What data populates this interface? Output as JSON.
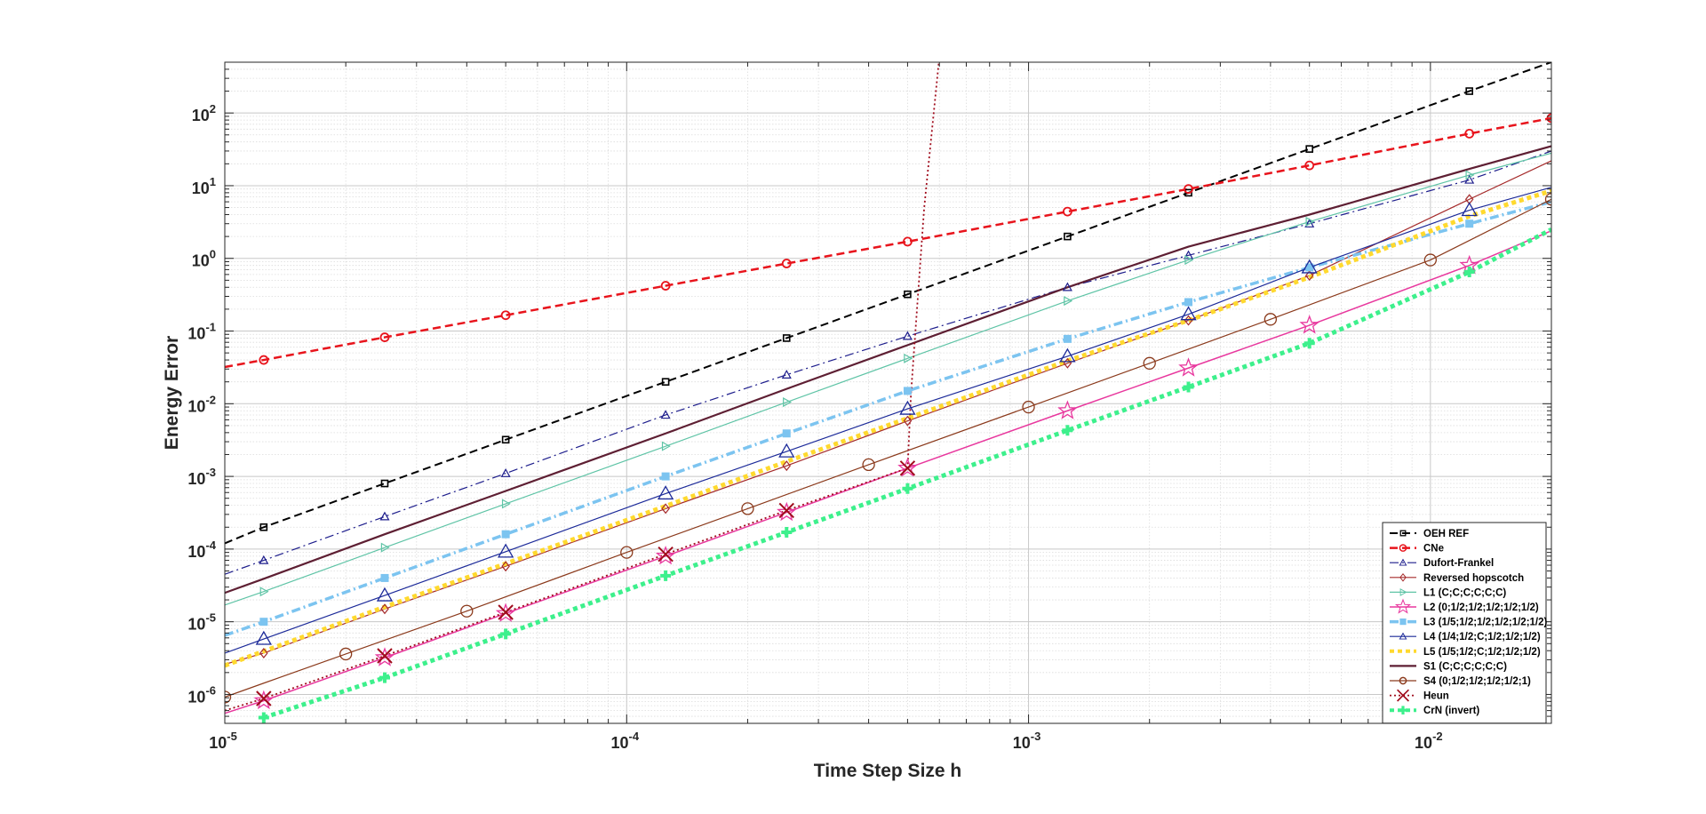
{
  "chart_data": {
    "type": "line",
    "xlabel": "Time Step Size h",
    "ylabel": "Energy Error",
    "xscale": "log",
    "yscale": "log",
    "xlim": [
      1e-05,
      0.02
    ],
    "ylim": [
      4e-07,
      500
    ],
    "grid": "on (major and minor)",
    "legend_position": "bottom-right",
    "x_ticks": [
      {
        "value": 1e-05,
        "base": "10",
        "exp": "-5"
      },
      {
        "value": 0.0001,
        "base": "10",
        "exp": "-4"
      },
      {
        "value": 0.001,
        "base": "10",
        "exp": "-3"
      },
      {
        "value": 0.01,
        "base": "10",
        "exp": "-2"
      }
    ],
    "y_ticks": [
      {
        "value": 1e-06,
        "base": "10",
        "exp": "-6"
      },
      {
        "value": 1e-05,
        "base": "10",
        "exp": "-5"
      },
      {
        "value": 0.0001,
        "base": "10",
        "exp": "-4"
      },
      {
        "value": 0.001,
        "base": "10",
        "exp": "-3"
      },
      {
        "value": 0.01,
        "base": "10",
        "exp": "-2"
      },
      {
        "value": 0.1,
        "base": "10",
        "exp": "-1"
      },
      {
        "value": 1,
        "base": "10",
        "exp": "0"
      },
      {
        "value": 10,
        "base": "10",
        "exp": "1"
      },
      {
        "value": 100,
        "base": "10",
        "exp": "2"
      }
    ],
    "series": [
      {
        "name": "OEH REF",
        "color": "#000000",
        "dash": "dashed",
        "width": 2,
        "marker": "square",
        "x": [
          1e-05,
          1.25e-05,
          2.5e-05,
          5e-05,
          0.000125,
          0.00025,
          0.0005,
          0.00125,
          0.0025,
          0.005,
          0.0125,
          0.02
        ],
        "y": [
          0.00012,
          0.0002,
          0.0008,
          0.0032,
          0.02,
          0.08,
          0.32,
          2.0,
          8.0,
          32.0,
          200.0,
          500.0
        ],
        "marker_idx": [
          1,
          2,
          3,
          4,
          5,
          6,
          7,
          8,
          9,
          10
        ]
      },
      {
        "name": "CNe",
        "color": "#e8141c",
        "dash": "dashed",
        "width": 2.5,
        "marker": "circle",
        "x": [
          1e-05,
          1.25e-05,
          2.5e-05,
          5e-05,
          0.000125,
          0.00025,
          0.0005,
          0.00125,
          0.0025,
          0.005,
          0.0125,
          0.02
        ],
        "y": [
          0.032,
          0.04,
          0.082,
          0.165,
          0.42,
          0.85,
          1.7,
          4.4,
          9.0,
          19.0,
          52.0,
          85.0
        ],
        "marker_idx": [
          1,
          2,
          3,
          4,
          5,
          6,
          7,
          8,
          9,
          10,
          11
        ]
      },
      {
        "name": "Dufort-Frankel",
        "color": "#1d1d8c",
        "dash": "dashdot",
        "width": 1.2,
        "marker": "triangle-up",
        "x": [
          1e-05,
          1.25e-05,
          2.5e-05,
          5e-05,
          0.000125,
          0.00025,
          0.0005,
          0.00125,
          0.0025,
          0.005,
          0.0125,
          0.02
        ],
        "y": [
          4.5e-05,
          7e-05,
          0.00028,
          0.0011,
          0.007,
          0.025,
          0.085,
          0.4,
          1.1,
          3.0,
          12.0,
          30.0
        ],
        "marker_idx": [
          1,
          2,
          3,
          4,
          5,
          6,
          7,
          8,
          9,
          10
        ]
      },
      {
        "name": "Reversed hopscotch",
        "color": "#a52a2a",
        "dash": "solid",
        "width": 1.2,
        "marker": "diamond",
        "x": [
          1e-05,
          1.25e-05,
          2.5e-05,
          5e-05,
          0.000125,
          0.00025,
          0.0005,
          0.00125,
          0.0025,
          0.005,
          0.0125,
          0.02
        ],
        "y": [
          2.6e-06,
          3.7e-06,
          1.5e-05,
          5.8e-05,
          0.00036,
          0.0014,
          0.0058,
          0.036,
          0.14,
          0.58,
          6.5,
          22.0
        ],
        "marker_idx": [
          1,
          2,
          3,
          4,
          5,
          6,
          7,
          8,
          9,
          10
        ]
      },
      {
        "name": "L1 (C;C;C;C;C;C)",
        "color": "#5fc4a6",
        "dash": "solid",
        "width": 1.2,
        "marker": "triangle-right",
        "x": [
          1e-05,
          1.25e-05,
          2.5e-05,
          5e-05,
          0.000125,
          0.00025,
          0.0005,
          0.00125,
          0.0025,
          0.005,
          0.0125,
          0.02
        ],
        "y": [
          1.7e-05,
          2.6e-05,
          0.000105,
          0.00042,
          0.0026,
          0.0105,
          0.042,
          0.26,
          0.95,
          3.2,
          14.0,
          28.0
        ],
        "marker_idx": [
          1,
          2,
          3,
          4,
          5,
          6,
          7,
          8,
          9,
          10
        ]
      },
      {
        "name": "L2 (0;1/2;1/2;1/2;1/2;1/2)",
        "color": "#e8389e",
        "dash": "solid",
        "width": 1.5,
        "marker": "star",
        "x": [
          1e-05,
          1.25e-05,
          2.5e-05,
          5e-05,
          0.000125,
          0.00025,
          0.0005,
          0.00125,
          0.0025,
          0.005,
          0.0125,
          0.02
        ],
        "y": [
          5.5e-07,
          8.2e-07,
          3.2e-06,
          1.3e-05,
          8e-05,
          0.00032,
          0.0013,
          0.008,
          0.031,
          0.12,
          0.8,
          2.4
        ],
        "marker_idx": [
          1,
          2,
          3,
          4,
          5,
          6,
          7,
          8,
          9,
          10
        ]
      },
      {
        "name": "L3 (1/5;1/2;1/2;1/2;1/2;1/2)",
        "color": "#7cc4f0",
        "dash": "dashdot",
        "width": 3.5,
        "marker": "square-filled",
        "x": [
          1e-05,
          1.25e-05,
          2.5e-05,
          5e-05,
          0.000125,
          0.00025,
          0.0005,
          0.00125,
          0.0025,
          0.005,
          0.0125,
          0.02
        ],
        "y": [
          6.5e-06,
          1e-05,
          4e-05,
          0.00016,
          0.001,
          0.0039,
          0.015,
          0.078,
          0.25,
          0.75,
          3.0,
          6.0
        ],
        "marker_idx": [
          1,
          2,
          3,
          4,
          5,
          6,
          7,
          8,
          9,
          10
        ]
      },
      {
        "name": "L4 (1/4;1/2;C;1/2;1/2;1/2)",
        "color": "#1c2a99",
        "dash": "solid",
        "width": 1.2,
        "marker": "triangle-up-large",
        "x": [
          1e-05,
          1.25e-05,
          2.5e-05,
          5e-05,
          0.000125,
          0.00025,
          0.0005,
          0.00125,
          0.0025,
          0.005,
          0.0125,
          0.02
        ],
        "y": [
          3.7e-06,
          5.8e-06,
          2.3e-05,
          9.2e-05,
          0.00058,
          0.0022,
          0.0085,
          0.045,
          0.17,
          0.75,
          4.6,
          9.5
        ],
        "marker_idx": [
          1,
          2,
          3,
          4,
          5,
          6,
          7,
          8,
          9,
          10
        ]
      },
      {
        "name": "L5 (1/5;1/2;C;1/2;1/2;1/2)",
        "color": "#ffd92e",
        "dash": "dotted",
        "width": 5,
        "marker": "none",
        "x": [
          1e-05,
          2.5e-05,
          5e-05,
          0.000125,
          0.00025,
          0.0005,
          0.00125,
          0.0025,
          0.005,
          0.0125,
          0.02
        ],
        "y": [
          2.5e-06,
          1.6e-05,
          6.3e-05,
          0.00039,
          0.0016,
          0.0063,
          0.039,
          0.14,
          0.55,
          3.8,
          8.5
        ],
        "marker_idx": []
      },
      {
        "name": "S1 (C;C;C;C;C;C)",
        "color": "#5e1f33",
        "dash": "solid",
        "width": 2.2,
        "marker": "none",
        "x": [
          1e-05,
          1.25e-05,
          2.5e-05,
          5e-05,
          0.000125,
          0.00025,
          0.0005,
          0.00125,
          0.0025,
          0.005,
          0.0125,
          0.02
        ],
        "y": [
          2.5e-05,
          3.9e-05,
          0.00016,
          0.00063,
          0.0039,
          0.016,
          0.064,
          0.4,
          1.45,
          4.0,
          17.0,
          35.0
        ],
        "marker_idx": []
      },
      {
        "name": "S4 (0;1/2;1/2;1/2;1/2;1)",
        "color": "#8b3a1c",
        "dash": "solid",
        "width": 1.2,
        "marker": "circle-large",
        "x": [
          1e-05,
          1.25e-05,
          2e-05,
          4e-05,
          0.0001,
          0.0002,
          0.0004,
          0.001,
          0.002,
          0.004,
          0.01,
          0.02
        ],
        "y": [
          9.2e-07,
          1.43e-06,
          3.6e-06,
          1.4e-05,
          9e-05,
          0.00036,
          0.00145,
          0.009,
          0.036,
          0.145,
          0.95,
          6.5
        ],
        "marker_idx": [
          0,
          2,
          3,
          4,
          5,
          6,
          7,
          8,
          9,
          10,
          11
        ]
      },
      {
        "name": "Heun",
        "color": "#a00c1c",
        "dash": "dotted",
        "width": 1.8,
        "marker": "x",
        "x": [
          1e-05,
          1.25e-05,
          2.5e-05,
          5e-05,
          0.000125,
          0.00025,
          0.0005,
          0.00051,
          0.00055,
          0.0006
        ],
        "y": [
          6e-07,
          8.8e-07,
          3.4e-06,
          1.35e-05,
          8.5e-05,
          0.00034,
          0.0013,
          0.014,
          5.0,
          600.0
        ],
        "marker_idx": [
          1,
          2,
          3,
          4,
          5,
          6
        ]
      },
      {
        "name": "CrN (invert)",
        "color": "#3df08c",
        "dash": "dotted",
        "width": 5,
        "marker": "plus",
        "x": [
          1.25e-05,
          2.5e-05,
          5e-05,
          0.000125,
          0.00025,
          0.0005,
          0.00125,
          0.0025,
          0.005,
          0.0125,
          0.02
        ],
        "y": [
          4.8e-07,
          1.7e-06,
          6.8e-06,
          4.3e-05,
          0.00017,
          0.00068,
          0.0043,
          0.017,
          0.068,
          0.65,
          2.5
        ],
        "marker_idx": [
          0,
          1,
          2,
          3,
          4,
          5,
          6,
          7,
          8,
          9
        ]
      }
    ]
  }
}
